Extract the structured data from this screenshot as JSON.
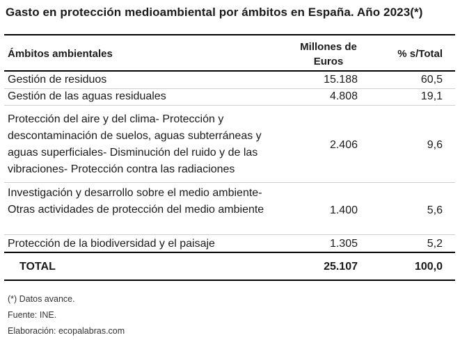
{
  "title": "Gasto en protección medioambiental por ámbitos en España. Año 2023(*)",
  "table": {
    "headers": {
      "label": "Ámbitos ambientales",
      "euros": "Millones de Euros",
      "percent": "% s/Total"
    },
    "rows": [
      {
        "label": "Gestión de residuos",
        "euros": "15.188",
        "percent": "60,5"
      },
      {
        "label": "Gestión de las aguas residuales",
        "euros": "4.808",
        "percent": "19,1"
      },
      {
        "label": "Protección del aire y del clima- Protección y descontaminación de suelos, aguas subterráneas y aguas superficiales- Disminución del ruido y de las vibraciones- Protección contra las radiaciones",
        "euros": "2.406",
        "percent": "9,6"
      },
      {
        "label": "Investigación y desarrollo sobre el medio ambiente- Otras actividades de protección del medio ambiente",
        "euros": "1.400",
        "percent": "5,6"
      },
      {
        "label": "Protección de la biodiversidad y el paisaje",
        "euros": "1.305",
        "percent": "5,2"
      }
    ],
    "total": {
      "label": "TOTAL",
      "euros": "25.107",
      "percent": "100,0"
    }
  },
  "notes": {
    "advance": "(*) Datos avance.",
    "source": "Fuente: INE.",
    "credit": "Elaboración: ecopalabras.com"
  }
}
